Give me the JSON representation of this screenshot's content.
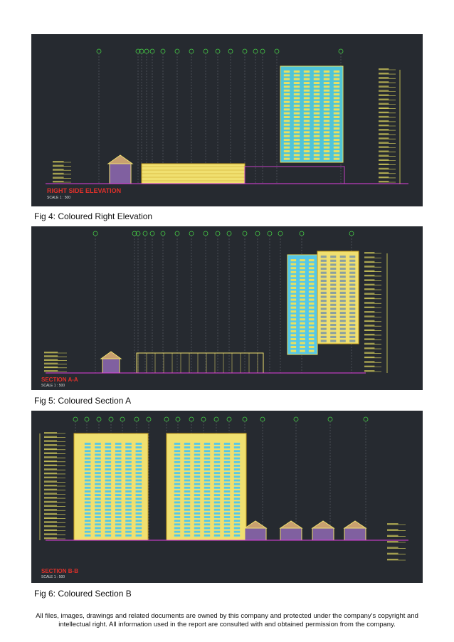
{
  "figures": [
    {
      "caption": "Fig 4: Coloured Right Elevation",
      "drawing_title": "RIGHT SIDE ELEVATION",
      "scale": "SCALE 1 : 500"
    },
    {
      "caption": "Fig 5: Coloured Section A",
      "drawing_title": "SECTION A-A",
      "scale": "SCALE 1 : 500"
    },
    {
      "caption": "Fig 6: Coloured Section B",
      "drawing_title": "SECTION B-B",
      "scale": "SCALE 1 : 500"
    }
  ],
  "footer": "All files, images, drawings and related documents are owned by this company and protected under the company's copyright and intellectual right. All information used in the report are consulted with and obtained permission from the company.",
  "colors": {
    "background": "#262a30",
    "tower_fill": "#55c8e8",
    "tower_accent": "#e8e060",
    "podium": "#f0e070",
    "grid_bubble": "#44cc44",
    "title_red": "#e0302a"
  }
}
